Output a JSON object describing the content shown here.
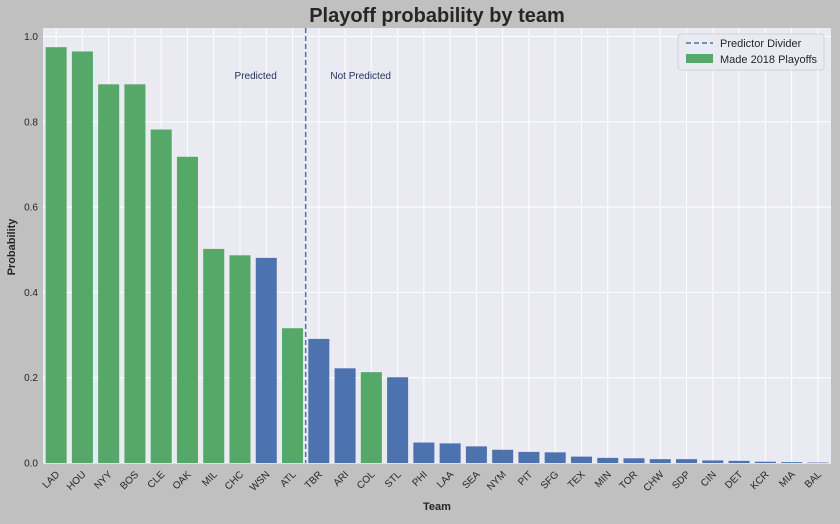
{
  "chart_data": {
    "type": "bar",
    "title": "Playoff probability by team",
    "xlabel": "Team",
    "ylabel": "Probability",
    "ylim": [
      0,
      1.02
    ],
    "yticks": [
      0.0,
      0.2,
      0.4,
      0.6,
      0.8,
      1.0
    ],
    "ytick_labels": [
      "0.0",
      "0.2",
      "0.4",
      "0.6",
      "0.8",
      "1.0"
    ],
    "grid": true,
    "categories": [
      "LAD",
      "HOU",
      "NYY",
      "BOS",
      "CLE",
      "OAK",
      "MIL",
      "CHC",
      "WSN",
      "ATL",
      "TBR",
      "ARI",
      "COL",
      "STL",
      "PHI",
      "LAA",
      "SEA",
      "NYM",
      "PIT",
      "SFG",
      "TEX",
      "MIN",
      "TOR",
      "CHW",
      "SDP",
      "CIN",
      "DET",
      "KCR",
      "MIA",
      "BAL"
    ],
    "values": [
      0.975,
      0.965,
      0.888,
      0.888,
      0.782,
      0.718,
      0.502,
      0.487,
      0.481,
      0.316,
      0.291,
      0.222,
      0.213,
      0.201,
      0.048,
      0.046,
      0.039,
      0.031,
      0.026,
      0.025,
      0.015,
      0.012,
      0.011,
      0.009,
      0.009,
      0.006,
      0.005,
      0.003,
      0.002,
      0.001
    ],
    "made_playoffs": [
      true,
      true,
      true,
      true,
      true,
      true,
      true,
      true,
      false,
      true,
      false,
      false,
      true,
      false,
      false,
      false,
      false,
      false,
      false,
      false,
      false,
      false,
      false,
      false,
      false,
      false,
      false,
      false,
      false,
      false
    ],
    "divider_after_index": 9,
    "annotations": [
      "Predicted",
      "Not Predicted"
    ],
    "legend": {
      "placement": "top-right",
      "entries": [
        {
          "label": "Predictor Divider",
          "style": "dashed-line",
          "color": "#4c72b0"
        },
        {
          "label": "Made 2018 Playoffs",
          "style": "patch",
          "color": "#55a868"
        }
      ]
    },
    "colors": {
      "made_playoffs": "#55a868",
      "missed": "#4c72b0",
      "divider": "#4c72b0",
      "plot_background": "#eaeaf2",
      "figure_background": "#bfc0bf"
    }
  }
}
